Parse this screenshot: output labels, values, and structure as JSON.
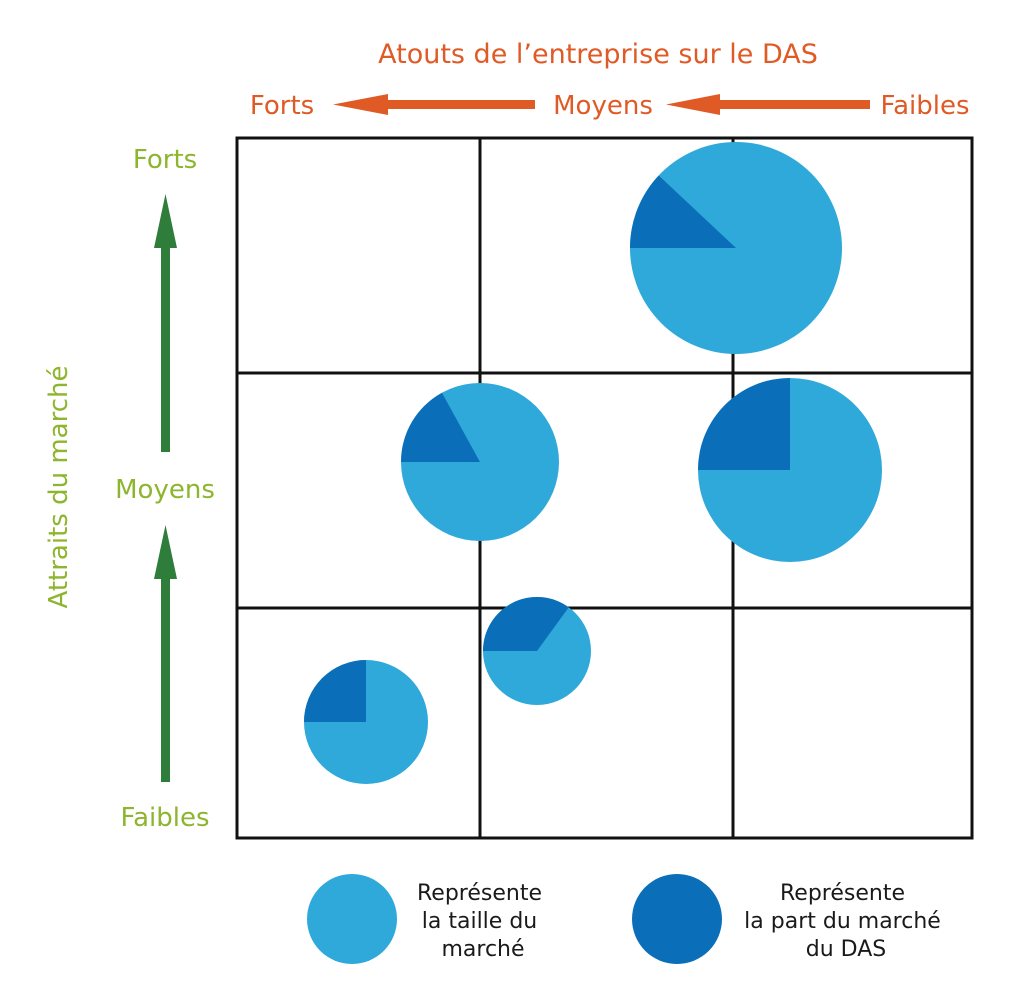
{
  "title": "Atouts de l’entreprise sur le DAS",
  "x_axis": {
    "label_strong": "Forts",
    "label_medium": "Moyens",
    "label_weak": "Faibles",
    "color": "#E05A26"
  },
  "y_axis": {
    "title": "Attraits du marché",
    "label_strong": "Forts",
    "label_medium": "Moyens",
    "label_weak": "Faibles",
    "text_color": "#8DB52E",
    "arrow_color": "#2E7D3A"
  },
  "colors": {
    "market_size": "#2FA9DA",
    "market_share": "#0A6FB8",
    "grid": "#111111"
  },
  "bubbles": [
    {
      "name": "bubble-1",
      "share_pct": 12
    },
    {
      "name": "bubble-2",
      "share_pct": 17
    },
    {
      "name": "bubble-3",
      "share_pct": 25
    },
    {
      "name": "bubble-4",
      "share_pct": 35
    },
    {
      "name": "bubble-5",
      "share_pct": 25
    }
  ],
  "legend": {
    "size_lines": [
      "Représente",
      "la taille du",
      "marché"
    ],
    "share_lines": [
      "Représente",
      "la part du marché",
      "du DAS"
    ]
  }
}
